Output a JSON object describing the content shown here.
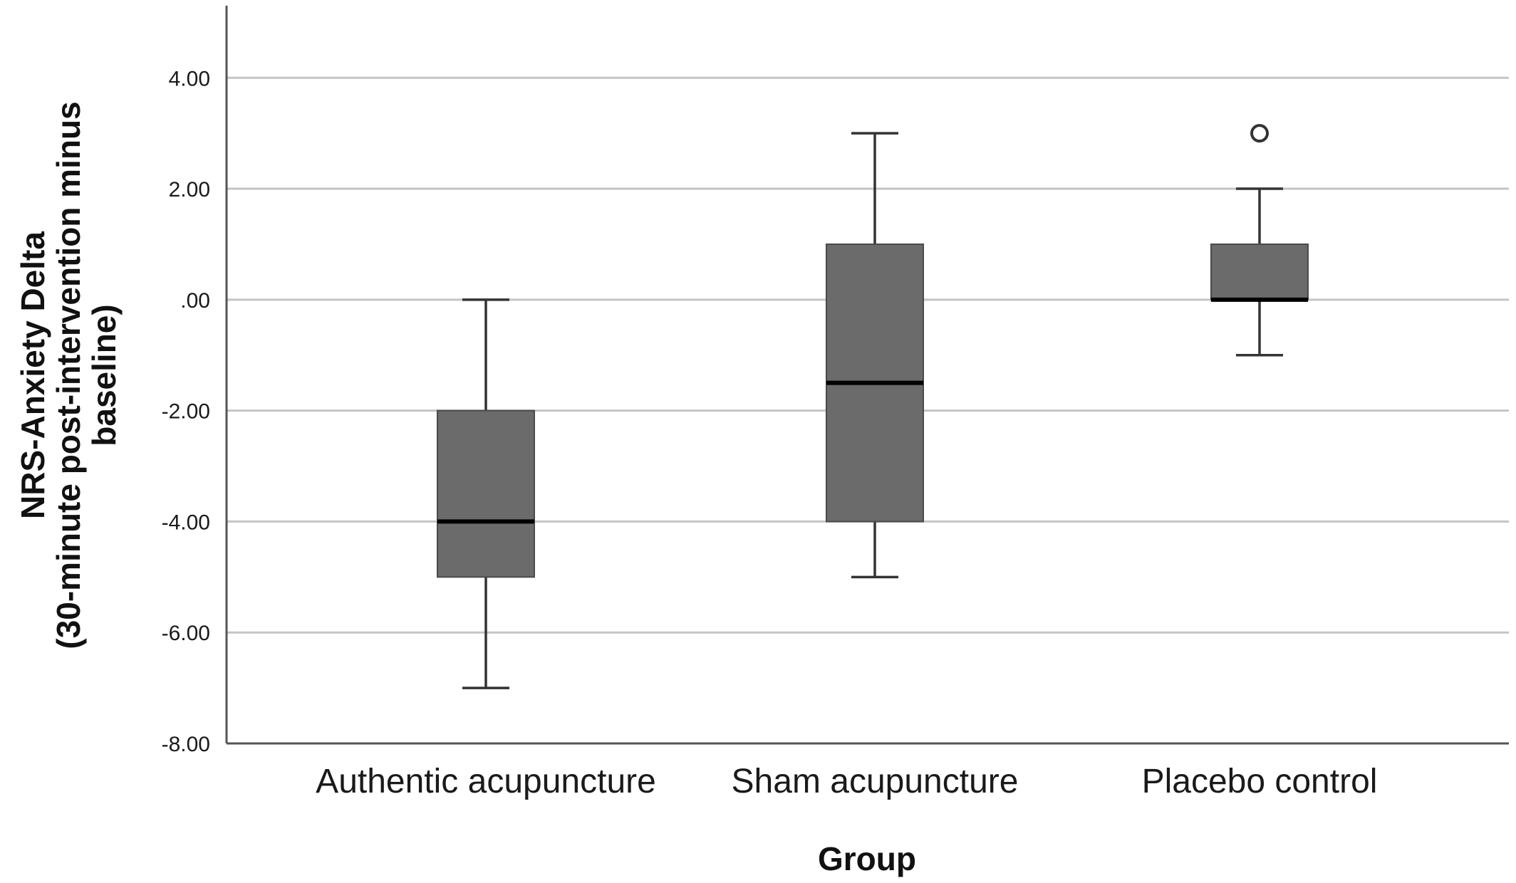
{
  "chart_data": {
    "type": "boxplot",
    "title": "",
    "xlabel": "Group",
    "ylabel_lines": [
      "NRS-Anxiety Delta",
      "(30-minute post-intervention minus",
      "baseline)"
    ],
    "ylim": [
      -8,
      5.3
    ],
    "yticks": [
      -8,
      -6,
      -4,
      -2,
      0,
      2,
      4
    ],
    "ytick_labels": [
      "-8.00",
      "-6.00",
      "-4.00",
      "-2.00",
      ".00",
      "2.00",
      "4.00"
    ],
    "grid": true,
    "box_color": "#6b6b6b",
    "grid_color": "#c4c4c4",
    "categories": [
      "Authentic acupuncture",
      "Sham acupuncture",
      "Placebo control"
    ],
    "boxes": [
      {
        "min": -7,
        "q1": -5,
        "median": -4,
        "q3": -2,
        "max": 0,
        "outliers": []
      },
      {
        "min": -5,
        "q1": -4,
        "median": -1.5,
        "q3": 1,
        "max": 3,
        "outliers": []
      },
      {
        "min": -1,
        "q1": 0,
        "median": 0,
        "q3": 1,
        "max": 2,
        "outliers": [
          3
        ]
      }
    ]
  }
}
